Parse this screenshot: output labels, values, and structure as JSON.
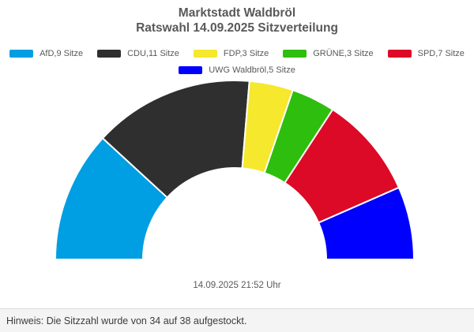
{
  "header": {
    "title_line1": "Marktstadt Waldbröl",
    "title_line2": "Ratswahl 14.09.2025 Sitzverteilung",
    "title_color": "#595959"
  },
  "chart_data": {
    "type": "pie",
    "variant": "half-donut",
    "title": "Marktstadt Waldbröl Ratswahl 14.09.2025 Sitzverteilung",
    "unit": "Sitze",
    "total_seats": 38,
    "start_angle_deg": -90,
    "end_angle_deg": 90,
    "inner_radius_ratio": 0.51,
    "legend_position": "top",
    "gap_color": "#ffffff",
    "series": [
      {
        "name": "AfD",
        "seats": 9,
        "color": "#009EE2",
        "label": "AfD,9 Sitze"
      },
      {
        "name": "CDU",
        "seats": 11,
        "color": "#2F2F2F",
        "label": "CDU,11 Sitze"
      },
      {
        "name": "FDP",
        "seats": 3,
        "color": "#F5E82D",
        "label": "FDP,3 Sitze"
      },
      {
        "name": "GRÜNE",
        "seats": 3,
        "color": "#2EBE0E",
        "label": "GRÜNE,3 Sitze"
      },
      {
        "name": "SPD",
        "seats": 7,
        "color": "#DC0A26",
        "label": "SPD,7 Sitze"
      },
      {
        "name": "UWG Waldbröl",
        "seats": 5,
        "color": "#0000FF",
        "label": "UWG Waldbröl,5 Sitze"
      }
    ]
  },
  "footer": {
    "timestamp": "14.09.2025 21:52 Uhr",
    "hinweis": "Hinweis: Die Sitzzahl wurde von 34 auf 38 aufgestockt."
  }
}
